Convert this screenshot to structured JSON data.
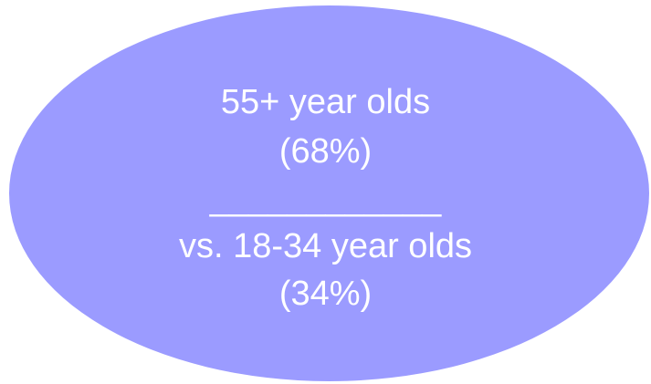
{
  "colors": {
    "ellipse_fill": "#9b9bff",
    "text": "#ffffff"
  },
  "callout": {
    "line1": "55+ year olds",
    "line2": "(68%)",
    "separator": "____________",
    "line3": "vs. 18-34 year olds",
    "line4": "(34%)"
  }
}
